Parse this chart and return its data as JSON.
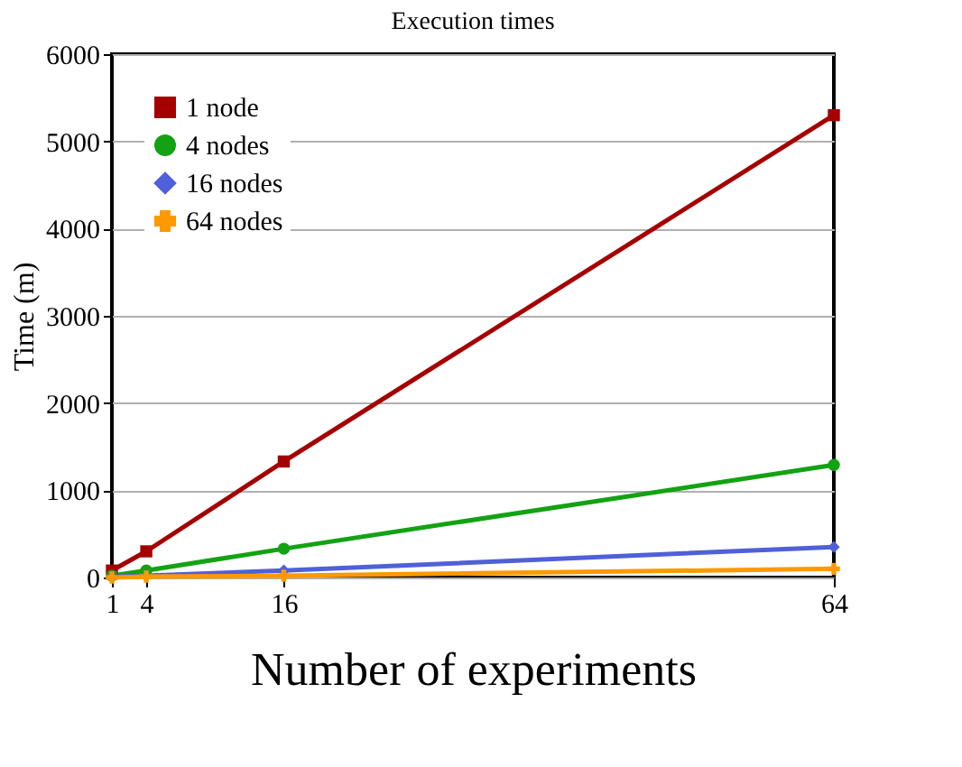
{
  "chart_data": {
    "type": "line",
    "title": "Execution times",
    "xlabel": "Number of experiments",
    "ylabel": "Time (m)",
    "x": [
      1,
      4,
      16,
      64
    ],
    "xlim": [
      1,
      64
    ],
    "xticks": [
      1,
      4,
      16,
      64
    ],
    "ylim": [
      0,
      6000
    ],
    "yticks": [
      0,
      1000,
      2000,
      3000,
      4000,
      5000,
      6000
    ],
    "grid": "y",
    "legend": "top left",
    "line_style": "solid",
    "series": [
      {
        "name": "1 node",
        "color": "#a50000",
        "values": [
          80,
          300,
          1330,
          5300
        ],
        "marker": "square"
      },
      {
        "name": "4 nodes",
        "color": "#13a213",
        "values": [
          20,
          80,
          330,
          1290
        ],
        "marker": "circle"
      },
      {
        "name": "16 nodes",
        "color": "#5060d8",
        "values": [
          10,
          20,
          80,
          350
        ],
        "marker": "diamond"
      },
      {
        "name": "64 nodes",
        "color": "#ff9900",
        "values": [
          0,
          10,
          20,
          100
        ],
        "marker": "cross"
      }
    ]
  }
}
